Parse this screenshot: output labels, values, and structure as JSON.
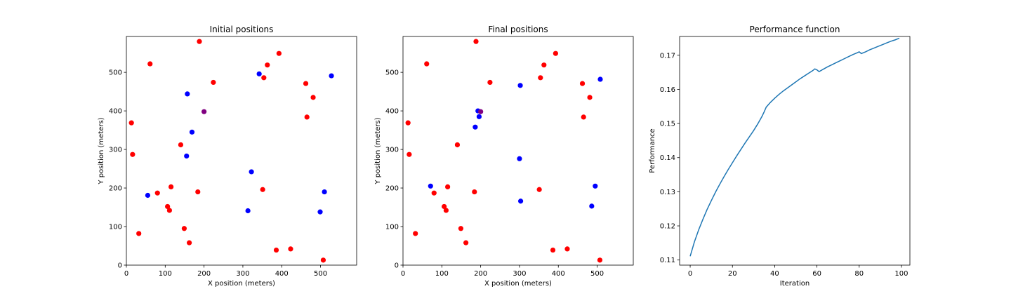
{
  "chart_data": [
    {
      "type": "scatter",
      "title": "Initial positions",
      "xlabel": "X position (meters)",
      "ylabel": "Y position (meters)",
      "xlim": [
        0,
        593
      ],
      "ylim": [
        0,
        593
      ],
      "xticks": [
        0,
        100,
        200,
        300,
        400,
        500
      ],
      "yticks": [
        0,
        100,
        200,
        300,
        400,
        500
      ],
      "grid": false,
      "series": [
        {
          "color": "#ff0000",
          "points": [
            [
              188,
              580
            ],
            [
              61,
              522
            ],
            [
              393,
              549
            ],
            [
              363,
              519
            ],
            [
              354,
              486
            ],
            [
              224,
              474
            ],
            [
              462,
              471
            ],
            [
              481,
              435
            ],
            [
              465,
              384
            ],
            [
              13,
              369
            ],
            [
              16,
              287
            ],
            [
              140,
              312
            ],
            [
              115,
              203
            ],
            [
              80,
              187
            ],
            [
              184,
              190
            ],
            [
              351,
              196
            ],
            [
              106,
              152
            ],
            [
              111,
              142
            ],
            [
              149,
              95
            ],
            [
              32,
              82
            ],
            [
              162,
              58
            ],
            [
              386,
              39
            ],
            [
              423,
              42
            ],
            [
              507,
              13
            ]
          ]
        },
        {
          "color": "#0000ff",
          "points": [
            [
              342,
              496
            ],
            [
              528,
              491
            ],
            [
              157,
              444
            ],
            [
              169,
              345
            ],
            [
              155,
              283
            ],
            [
              322,
              242
            ],
            [
              55,
              181
            ],
            [
              510,
              190
            ],
            [
              313,
              141
            ],
            [
              499,
              138
            ]
          ]
        },
        {
          "color": "#800080",
          "points": [
            [
              200,
              398
            ]
          ]
        }
      ]
    },
    {
      "type": "scatter",
      "title": "Final positions",
      "xlabel": "X position (meters)",
      "ylabel": "Y position (meters)",
      "xlim": [
        0,
        593
      ],
      "ylim": [
        0,
        593
      ],
      "xticks": [
        0,
        100,
        200,
        300,
        400,
        500
      ],
      "yticks": [
        0,
        100,
        200,
        300,
        400,
        500
      ],
      "grid": false,
      "series": [
        {
          "color": "#ff0000",
          "points": [
            [
              188,
              580
            ],
            [
              61,
              522
            ],
            [
              393,
              549
            ],
            [
              363,
              519
            ],
            [
              354,
              486
            ],
            [
              224,
              474
            ],
            [
              462,
              471
            ],
            [
              481,
              435
            ],
            [
              465,
              384
            ],
            [
              13,
              369
            ],
            [
              16,
              287
            ],
            [
              140,
              312
            ],
            [
              115,
              203
            ],
            [
              80,
              187
            ],
            [
              184,
              190
            ],
            [
              351,
              196
            ],
            [
              106,
              152
            ],
            [
              111,
              142
            ],
            [
              149,
              95
            ],
            [
              32,
              82
            ],
            [
              162,
              58
            ],
            [
              386,
              39
            ],
            [
              423,
              42
            ],
            [
              507,
              13
            ]
          ]
        },
        {
          "color": "#0000ff",
          "points": [
            [
              302,
              466
            ],
            [
              508,
              482
            ],
            [
              193,
              400
            ],
            [
              196,
              385
            ],
            [
              186,
              358
            ],
            [
              300,
              276
            ],
            [
              71,
              205
            ],
            [
              495,
              205
            ],
            [
              303,
              166
            ],
            [
              486,
              153
            ]
          ]
        },
        {
          "color": "#800080",
          "points": [
            [
              200,
              398
            ]
          ]
        }
      ]
    },
    {
      "type": "line",
      "title": "Performance function",
      "xlabel": "Iteration",
      "ylabel": "Performance",
      "xlim": [
        -5,
        104
      ],
      "ylim": [
        0.1085,
        0.1755
      ],
      "xticks": [
        0,
        20,
        40,
        60,
        80,
        100
      ],
      "yticks": [
        0.11,
        0.12,
        0.13,
        0.14,
        0.15,
        0.16,
        0.17
      ],
      "ytick_labels": [
        "0.11",
        "0.12",
        "0.13",
        "0.14",
        "0.15",
        "0.16",
        "0.17"
      ],
      "grid": false,
      "series": [
        {
          "color": "#1f77b4",
          "x": [
            0,
            2,
            4,
            6,
            8,
            10,
            12,
            14,
            16,
            18,
            20,
            22,
            24,
            26,
            28,
            30,
            32,
            34,
            35,
            36,
            38,
            40,
            42,
            44,
            46,
            48,
            50,
            52,
            54,
            56,
            58,
            59,
            60,
            61,
            63,
            65,
            67,
            69,
            71,
            73,
            75,
            77,
            79,
            80,
            81,
            83,
            85,
            87,
            89,
            91,
            93,
            95,
            97,
            99
          ],
          "y": [
            0.1111,
            0.1153,
            0.1188,
            0.1219,
            0.1248,
            0.1274,
            0.1299,
            0.1322,
            0.1344,
            0.1365,
            0.1385,
            0.1405,
            0.1424,
            0.1443,
            0.1461,
            0.1479,
            0.1499,
            0.1521,
            0.1534,
            0.1548,
            0.1562,
            0.1574,
            0.1585,
            0.1595,
            0.1604,
            0.1613,
            0.1622,
            0.1631,
            0.1639,
            0.1647,
            0.1655,
            0.166,
            0.1657,
            0.1652,
            0.1659,
            0.1666,
            0.1672,
            0.1678,
            0.1684,
            0.169,
            0.1696,
            0.1702,
            0.1707,
            0.171,
            0.1705,
            0.171,
            0.1716,
            0.1721,
            0.1726,
            0.1731,
            0.1736,
            0.1741,
            0.1745,
            0.175
          ]
        }
      ]
    }
  ]
}
